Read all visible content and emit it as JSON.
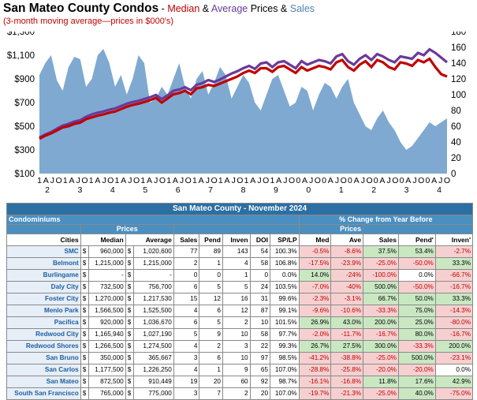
{
  "title": {
    "main": "San Mateo County Condos",
    "dash": " - ",
    "median": "Median",
    "amp1": " & ",
    "average": "Average",
    "prices": " Prices & ",
    "sales": "Sales",
    "subtitle": "(3-month moving average—prices in $000's)"
  },
  "colors": {
    "median": "#c00000",
    "average": "#6a3a99",
    "sales": "#7fa9d0"
  },
  "chart_data": {
    "type": "line",
    "left_axis": {
      "ticks": [
        "$1,300",
        "$1,100",
        "$900",
        "$700",
        "$500",
        "$300",
        "$100"
      ],
      "range": [
        100,
        1300
      ]
    },
    "right_axis": {
      "ticks": [
        "180",
        "160",
        "140",
        "120",
        "100",
        "80",
        "60",
        "40",
        "20",
        "0"
      ],
      "range": [
        0,
        180
      ]
    },
    "month_labels": [
      "1",
      "A",
      "J",
      "O",
      "1",
      "A",
      "J",
      "O",
      "1",
      "A",
      "J",
      "O",
      "1",
      "A",
      "J",
      "O",
      "1",
      "A",
      "J",
      "O",
      "1",
      "A",
      "J",
      "O",
      "1",
      "A",
      "J",
      "O",
      "1",
      "A",
      "J",
      "O",
      "1",
      "A",
      "J",
      "O",
      "1",
      "A",
      "J",
      "O",
      "0",
      "A",
      "J",
      "O",
      "0",
      "A",
      "J",
      "O",
      "0",
      "2",
      "A",
      "J",
      "O",
      "0",
      "2",
      "A",
      "J",
      "O",
      "0",
      "2",
      "A",
      "J",
      "O",
      "0",
      "2",
      "A",
      "J",
      "O"
    ],
    "x_labels": [
      "1",
      "A",
      "J",
      "O",
      "1",
      "A",
      "J",
      "O",
      "1",
      "A",
      "J",
      "O",
      "1",
      "A",
      "J",
      "O",
      "1",
      "A",
      "J",
      "O",
      "1",
      "A",
      "J",
      "O",
      "1",
      "A",
      "J",
      "O",
      "1",
      "A",
      "J",
      "O",
      "1",
      "A",
      "J",
      "O",
      "1",
      "A",
      "J",
      "O",
      "0",
      "A",
      "J",
      "O",
      "0",
      "A",
      "J",
      "O",
      "0",
      "A",
      "J",
      "O",
      "0",
      "A",
      "J",
      "O",
      "0",
      "A",
      "J",
      "O",
      "0",
      "A",
      "J",
      "O"
    ],
    "year_labels": [
      "2",
      "3",
      "4",
      "5",
      "6",
      "7",
      "8",
      "9",
      "0",
      "1",
      "2",
      "3",
      "4"
    ],
    "series": [
      {
        "name": "Median",
        "axis": "left",
        "values": [
          395,
          420,
          440,
          465,
          490,
          500,
          520,
          530,
          560,
          575,
          590,
          600,
          615,
          625,
          645,
          665,
          680,
          690,
          705,
          720,
          740,
          700,
          735,
          770,
          780,
          800,
          770,
          820,
          830,
          850,
          840,
          860,
          880,
          900,
          920,
          950,
          970,
          950,
          990,
          990,
          960,
          1000,
          1010,
          980,
          950,
          1000,
          970,
          990,
          1010,
          1000,
          980,
          1040,
          1060,
          1000,
          970,
          1020,
          1050,
          1000,
          1060,
          1040,
          1000,
          980,
          1040,
          1030,
          1010,
          1060,
          1040,
          1070,
          1000,
          940,
          920
        ]
      },
      {
        "name": "Average",
        "axis": "left",
        "values": [
          405,
          430,
          450,
          480,
          505,
          520,
          540,
          550,
          580,
          600,
          615,
          625,
          640,
          650,
          670,
          690,
          705,
          715,
          730,
          745,
          765,
          730,
          760,
          800,
          810,
          830,
          805,
          850,
          865,
          890,
          875,
          895,
          920,
          945,
          965,
          990,
          1010,
          985,
          1030,
          1040,
          1000,
          1040,
          1050,
          1020,
          990,
          1050,
          1020,
          1040,
          1060,
          1050,
          1030,
          1090,
          1110,
          1050,
          1020,
          1070,
          1100,
          1060,
          1110,
          1090,
          1060,
          1040,
          1090,
          1080,
          1070,
          1120,
          1100,
          1150,
          1120,
          1080,
          1040
        ]
      },
      {
        "name": "Sales",
        "axis": "right",
        "values": [
          125,
          140,
          150,
          118,
          105,
          135,
          148,
          145,
          110,
          120,
          150,
          158,
          140,
          110,
          125,
          100,
          120,
          150,
          140,
          90,
          95,
          110,
          100,
          120,
          140,
          110,
          95,
          120,
          130,
          100,
          115,
          135,
          125,
          95,
          110,
          125,
          115,
          90,
          80,
          100,
          120,
          125,
          105,
          85,
          90,
          110,
          105,
          80,
          100,
          115,
          110,
          95,
          110,
          120,
          90,
          75,
          60,
          55,
          70,
          80,
          65,
          55,
          40,
          30,
          35,
          45,
          55,
          65,
          60,
          65,
          70
        ]
      }
    ]
  },
  "table": {
    "banner": "San Mateo County - November 2024",
    "condominiums": "Condominiums",
    "change_header": "% Change from Year Before",
    "prices_group": "Prices",
    "prices_group_right": "Prices",
    "headers": [
      "Cities",
      "Median",
      "Average",
      "Sales",
      "Pend",
      "Inven",
      "DOI",
      "SP/LP",
      "Med",
      "Ave",
      "Sales",
      "Pend'",
      "Inven'"
    ],
    "rows": [
      {
        "city": "SMC",
        "med_d": "$",
        "median": "960,000",
        "avg_d": "$",
        "average": "1,020,600",
        "sales": "77",
        "pend": "89",
        "inven": "143",
        "doi": "54",
        "splp": "100.3%",
        "c_med": "-0.5%",
        "c_ave": "-8.6%",
        "c_sales": "37.5%",
        "c_pend": "53.4%",
        "c_inven": "-2.7%"
      },
      {
        "city": "Belmont",
        "med_d": "$",
        "median": "1,215,000",
        "avg_d": "$",
        "average": "1,215,000",
        "sales": "2",
        "pend": "1",
        "inven": "4",
        "doi": "58",
        "splp": "106.8%",
        "c_med": "-17.5%",
        "c_ave": "-23.9%",
        "c_sales": "-25.0%",
        "c_pend": "-50.0%",
        "c_inven": "33.3%"
      },
      {
        "city": "Burlingame",
        "med_d": "$",
        "median": "-",
        "avg_d": "$",
        "average": "-",
        "sales": "0",
        "pend": "0",
        "inven": "1",
        "doi": "0",
        "splp": "0.0%",
        "c_med": "14.0%",
        "c_ave": "-24%",
        "c_sales": "-100.0%",
        "c_pend": "0.0%",
        "c_inven": "-66.7%"
      },
      {
        "city": "Daly City",
        "med_d": "$",
        "median": "732,500",
        "avg_d": "$",
        "average": "756,700",
        "sales": "6",
        "pend": "5",
        "inven": "5",
        "doi": "24",
        "splp": "103.5%",
        "c_med": "-7.0%",
        "c_ave": "-40%",
        "c_sales": "500.0%",
        "c_pend": "-50.0%",
        "c_inven": "-16.7%"
      },
      {
        "city": "Foster City",
        "med_d": "$",
        "median": "1,270,000",
        "avg_d": "$",
        "average": "1,217,530",
        "sales": "15",
        "pend": "12",
        "inven": "16",
        "doi": "31",
        "splp": "99.6%",
        "c_med": "-2.3%",
        "c_ave": "-3.1%",
        "c_sales": "66.7%",
        "c_pend": "50.0%",
        "c_inven": "33.3%"
      },
      {
        "city": "Menlo Park",
        "med_d": "$",
        "median": "1,566,500",
        "avg_d": "$",
        "average": "1,525,500",
        "sales": "4",
        "pend": "6",
        "inven": "12",
        "doi": "87",
        "splp": "99.1%",
        "c_med": "-9.6%",
        "c_ave": "-10.6%",
        "c_sales": "-33.3%",
        "c_pend": "75.0%",
        "c_inven": "-14.3%"
      },
      {
        "city": "Pacifica",
        "med_d": "$",
        "median": "920,000",
        "avg_d": "$",
        "average": "1,036,670",
        "sales": "6",
        "pend": "5",
        "inven": "2",
        "doi": "10",
        "splp": "101.5%",
        "c_med": "26.9%",
        "c_ave": "43.0%",
        "c_sales": "200.0%",
        "c_pend": "25.0%",
        "c_inven": "-80.0%"
      },
      {
        "city": "Redwood City",
        "med_d": "$",
        "median": "1,165,940",
        "avg_d": "$",
        "average": "1,027,190",
        "sales": "5",
        "pend": "9",
        "inven": "10",
        "doi": "58",
        "splp": "97.7%",
        "c_med": "-2.0%",
        "c_ave": "-11.7%",
        "c_sales": "-16.7%",
        "c_pend": "80.0%",
        "c_inven": "-16.7%"
      },
      {
        "city": "Redwood Shores",
        "med_d": "$",
        "median": "1,266,500",
        "avg_d": "$",
        "average": "1,274,500",
        "sales": "4",
        "pend": "2",
        "inven": "3",
        "doi": "22",
        "splp": "99.3%",
        "c_med": "26.7%",
        "c_ave": "27.5%",
        "c_sales": "300.0%",
        "c_pend": "-33.3%",
        "c_inven": "200.0%"
      },
      {
        "city": "San Bruno",
        "med_d": "$",
        "median": "350,000",
        "avg_d": "$",
        "average": "365,667",
        "sales": "3",
        "pend": "6",
        "inven": "10",
        "doi": "97",
        "splp": "98.5%",
        "c_med": "-41.2%",
        "c_ave": "-38.8%",
        "c_sales": "-25.0%",
        "c_pend": "500.0%",
        "c_inven": "-23.1%"
      },
      {
        "city": "San Carlos",
        "med_d": "$",
        "median": "1,177,500",
        "avg_d": "$",
        "average": "1,226,250",
        "sales": "4",
        "pend": "1",
        "inven": "9",
        "doi": "65",
        "splp": "107.0%",
        "c_med": "-28.8%",
        "c_ave": "-25.8%",
        "c_sales": "-20.0%",
        "c_pend": "-20.0%",
        "c_inven": "0.0%"
      },
      {
        "city": "San Mateo",
        "med_d": "$",
        "median": "872,500",
        "avg_d": "$",
        "average": "910,449",
        "sales": "19",
        "pend": "20",
        "inven": "60",
        "doi": "92",
        "splp": "98.7%",
        "c_med": "-16.1%",
        "c_ave": "-16.8%",
        "c_sales": "11.8%",
        "c_pend": "17.6%",
        "c_inven": "42.9%"
      },
      {
        "city": "South San Francisco",
        "med_d": "$",
        "median": "765,000",
        "avg_d": "$",
        "average": "775,000",
        "sales": "3",
        "pend": "7",
        "inven": "2",
        "doi": "20",
        "splp": "107.0%",
        "c_med": "-19.7%",
        "c_ave": "-21.3%",
        "c_sales": "-25.0%",
        "c_pend": "40.0%",
        "c_inven": "-75.0%"
      }
    ]
  }
}
